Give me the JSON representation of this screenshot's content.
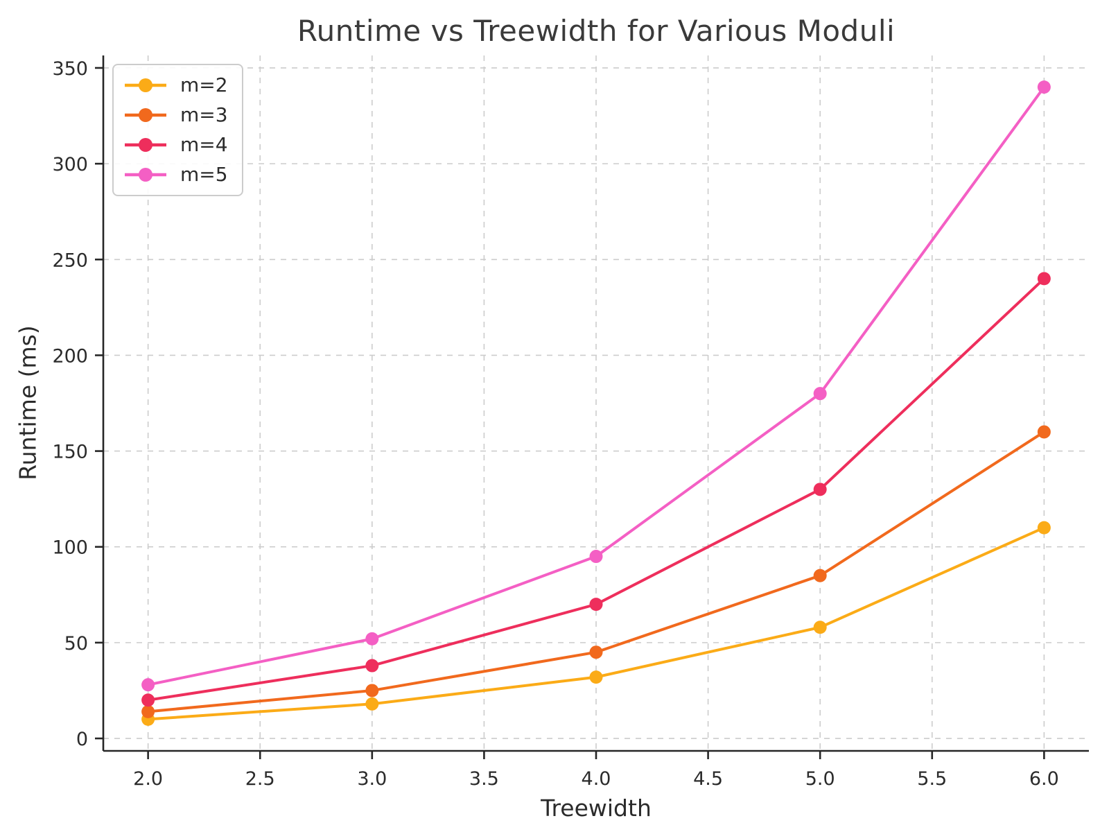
{
  "figure": {
    "title": "Runtime vs Treewidth for Various Moduli",
    "xlabel": "Treewidth",
    "ylabel": "Runtime (ms)"
  },
  "chart_data": {
    "type": "line",
    "title": "Runtime vs Treewidth for Various Moduli",
    "xlabel": "Treewidth",
    "ylabel": "Runtime (ms)",
    "x": [
      2,
      3,
      4,
      5,
      6
    ],
    "series": [
      {
        "name": "m=2",
        "color": "#FBAB17",
        "values": [
          10,
          18,
          32,
          58,
          110
        ]
      },
      {
        "name": "m=3",
        "color": "#F1691D",
        "values": [
          14,
          25,
          45,
          85,
          160
        ]
      },
      {
        "name": "m=4",
        "color": "#EE2E5C",
        "values": [
          20,
          38,
          70,
          130,
          240
        ]
      },
      {
        "name": "m=5",
        "color": "#F45FC4",
        "values": [
          28,
          52,
          95,
          180,
          340
        ]
      }
    ],
    "xlim": [
      1.8,
      6.2
    ],
    "ylim": [
      -6.5,
      356.5
    ],
    "x_ticks": [
      2.0,
      2.5,
      3.0,
      3.5,
      4.0,
      4.5,
      5.0,
      5.5,
      6.0
    ],
    "x_tick_labels": [
      "2.0",
      "2.5",
      "3.0",
      "3.5",
      "4.0",
      "4.5",
      "5.0",
      "5.5",
      "6.0"
    ],
    "y_ticks": [
      0,
      50,
      100,
      150,
      200,
      250,
      300,
      350
    ],
    "y_tick_labels": [
      "0",
      "50",
      "100",
      "150",
      "200",
      "250",
      "300",
      "350"
    ],
    "grid": true,
    "grid_style": "dashed",
    "legend_position": "upper-left",
    "style": {
      "grid_color": "#CCCCCC",
      "spine_color": "#262626",
      "tick_label_color": "#2b2b2b",
      "title_color": "#3a3a3a",
      "line_width": 4,
      "marker_radius": 9.5
    }
  }
}
